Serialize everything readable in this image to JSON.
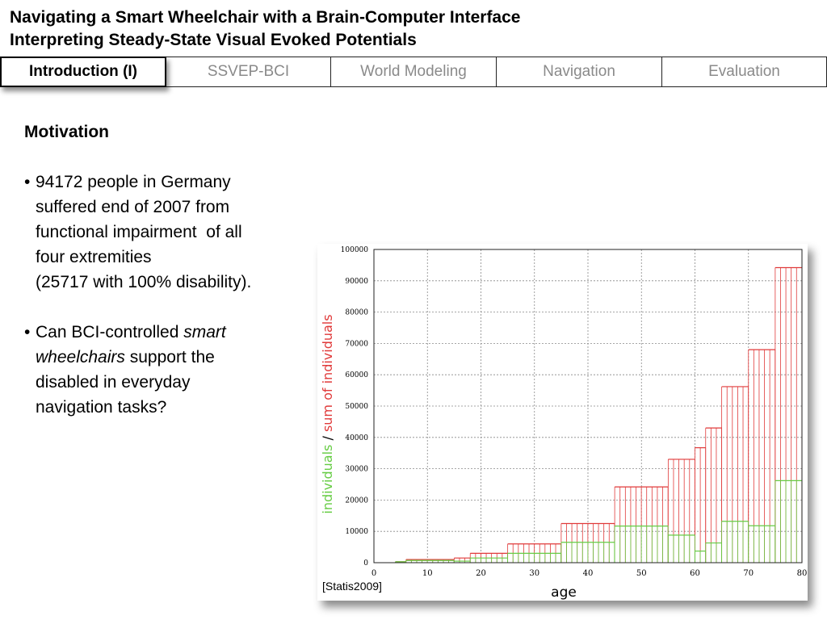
{
  "title": {
    "line1": "Navigating a Smart Wheelchair with a Brain-Computer Interface",
    "line2": "Interpreting Steady-State Visual Evoked Potentials"
  },
  "tabs": [
    {
      "label": "Introduction (I)",
      "active": true
    },
    {
      "label": "SSVEP-BCI",
      "active": false
    },
    {
      "label": "World Modeling",
      "active": false
    },
    {
      "label": "Navigation",
      "active": false
    },
    {
      "label": "Evaluation",
      "active": false
    }
  ],
  "content": {
    "heading": "Motivation",
    "bullet1": {
      "line1": "94172 people in Germany",
      "line2": "suffered end of 2007 from",
      "line3": "functional impairment  of all",
      "line4": "four extremities",
      "line5": "(25717 with 100% disability)."
    },
    "bullet2": {
      "pre": "Can BCI-controlled ",
      "italic1": "smart",
      "italic2": "wheelchairs",
      "post": " support the",
      "line3": "disabled in everyday",
      "line4": "navigation tasks?"
    },
    "bullet_symbol": "•"
  },
  "source_label": "[Statis2009]",
  "colors": {
    "individuals": "#66cc44",
    "sum": "#e03a3a"
  },
  "chart_data": {
    "type": "bar",
    "xlabel": "age",
    "ylabel_individuals": "individuals",
    "ylabel_separator": " / ",
    "ylabel_sum": "sum of individuals",
    "xlim": [
      0,
      80
    ],
    "ylim": [
      0,
      100000
    ],
    "xticks": [
      0,
      10,
      20,
      30,
      40,
      50,
      60,
      70,
      80
    ],
    "yticks": [
      0,
      10000,
      20000,
      30000,
      40000,
      50000,
      60000,
      70000,
      80000,
      90000,
      100000
    ],
    "grid": true,
    "bins": [
      {
        "from": 4,
        "to": 6,
        "individuals": 300,
        "sum": 300
      },
      {
        "from": 6,
        "to": 15,
        "individuals": 700,
        "sum": 1000
      },
      {
        "from": 15,
        "to": 18,
        "individuals": 500,
        "sum": 1500
      },
      {
        "from": 18,
        "to": 25,
        "individuals": 1500,
        "sum": 3000
      },
      {
        "from": 25,
        "to": 35,
        "individuals": 3000,
        "sum": 6000
      },
      {
        "from": 35,
        "to": 45,
        "individuals": 6500,
        "sum": 12500
      },
      {
        "from": 45,
        "to": 55,
        "individuals": 11700,
        "sum": 24200
      },
      {
        "from": 55,
        "to": 60,
        "individuals": 8800,
        "sum": 33000
      },
      {
        "from": 60,
        "to": 62,
        "individuals": 3700,
        "sum": 36700
      },
      {
        "from": 62,
        "to": 65,
        "individuals": 6300,
        "sum": 43000
      },
      {
        "from": 65,
        "to": 70,
        "individuals": 13200,
        "sum": 56200
      },
      {
        "from": 70,
        "to": 75,
        "individuals": 11800,
        "sum": 68000
      },
      {
        "from": 75,
        "to": 80,
        "individuals": 26200,
        "sum": 94200
      }
    ]
  }
}
